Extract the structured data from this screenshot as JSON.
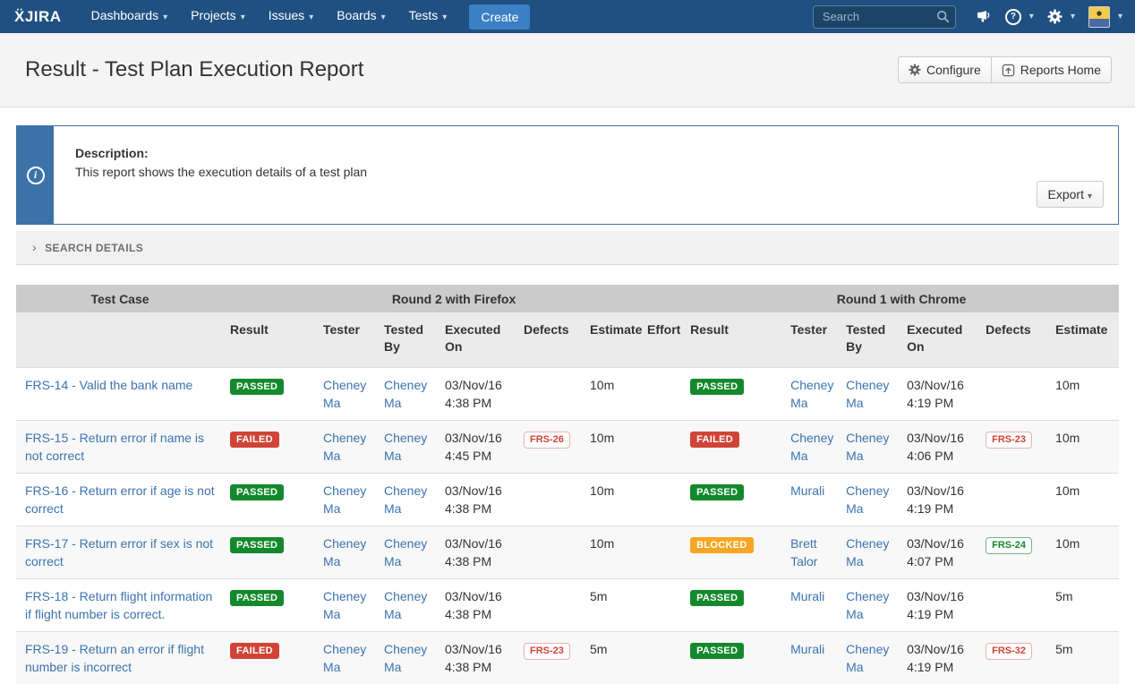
{
  "icons": {
    "caret": "▾",
    "chevron_right": "›",
    "question": "?",
    "info": "i"
  },
  "colors": {
    "navbar": "#205081",
    "link": "#3b73af",
    "passed": "#14892c",
    "failed": "#d04437",
    "blocked": "#f6a623"
  },
  "navbar": {
    "logo_mark": "Ẍ",
    "logo_text": "JIRA",
    "menu": [
      {
        "label": "Dashboards"
      },
      {
        "label": "Projects"
      },
      {
        "label": "Issues"
      },
      {
        "label": "Boards"
      },
      {
        "label": "Tests"
      }
    ],
    "create_label": "Create",
    "search_placeholder": "Search"
  },
  "header": {
    "title": "Result - Test Plan Execution Report",
    "configure_label": "Configure",
    "reports_home_label": "Reports Home"
  },
  "description_panel": {
    "heading": "Description:",
    "text": "This report shows the execution details of a test plan",
    "export_label": "Export"
  },
  "search_details_label": "SEARCH DETAILS",
  "table": {
    "group_headers": {
      "test_case": "Test Case",
      "round2": "Round 2 with Firefox",
      "round1": "Round 1 with Chrome"
    },
    "columns_round2": [
      "Result",
      "Tester",
      "Tested By",
      "Executed On",
      "Defects",
      "Estimate",
      "Effort"
    ],
    "columns_round1": [
      "Result",
      "Tester",
      "Tested By",
      "Executed On",
      "Defects",
      "Estimate"
    ],
    "rows": [
      {
        "key": "FRS-14",
        "summary": "Valid the bank name",
        "round2": {
          "result": "PASSED",
          "tester": "Cheney Ma",
          "tested_by": "Cheney Ma",
          "executed_on": "03/Nov/16 4:38 PM",
          "defect": null,
          "estimate": "10m",
          "effort": ""
        },
        "round1": {
          "result": "PASSED",
          "tester": "Cheney Ma",
          "tested_by": "Cheney Ma",
          "executed_on": "03/Nov/16 4:19 PM",
          "defect": null,
          "estimate": "10m"
        }
      },
      {
        "key": "FRS-15",
        "summary": "Return error if name is not correct",
        "round2": {
          "result": "FAILED",
          "tester": "Cheney Ma",
          "tested_by": "Cheney Ma",
          "executed_on": "03/Nov/16 4:45 PM",
          "defect": {
            "key": "FRS-26",
            "state": "open"
          },
          "estimate": "10m",
          "effort": ""
        },
        "round1": {
          "result": "FAILED",
          "tester": "Cheney Ma",
          "tested_by": "Cheney Ma",
          "executed_on": "03/Nov/16 4:06 PM",
          "defect": {
            "key": "FRS-23",
            "state": "open"
          },
          "estimate": "10m"
        }
      },
      {
        "key": "FRS-16",
        "summary": "Return error if age is not correct",
        "round2": {
          "result": "PASSED",
          "tester": "Cheney Ma",
          "tested_by": "Cheney Ma",
          "executed_on": "03/Nov/16 4:38 PM",
          "defect": null,
          "estimate": "10m",
          "effort": ""
        },
        "round1": {
          "result": "PASSED",
          "tester": "Murali",
          "tested_by": "Cheney Ma",
          "executed_on": "03/Nov/16 4:19 PM",
          "defect": null,
          "estimate": "10m"
        }
      },
      {
        "key": "FRS-17",
        "summary": "Return error if sex is not correct",
        "round2": {
          "result": "PASSED",
          "tester": "Cheney Ma",
          "tested_by": "Cheney Ma",
          "executed_on": "03/Nov/16 4:38 PM",
          "defect": null,
          "estimate": "10m",
          "effort": ""
        },
        "round1": {
          "result": "BLOCKED",
          "tester": "Brett Talor",
          "tested_by": "Cheney Ma",
          "executed_on": "03/Nov/16 4:07 PM",
          "defect": {
            "key": "FRS-24",
            "state": "resolved"
          },
          "estimate": "10m"
        }
      },
      {
        "key": "FRS-18",
        "summary": "Return flight information if flight number is correct.",
        "round2": {
          "result": "PASSED",
          "tester": "Cheney Ma",
          "tested_by": "Cheney Ma",
          "executed_on": "03/Nov/16 4:38 PM",
          "defect": null,
          "estimate": "5m",
          "effort": ""
        },
        "round1": {
          "result": "PASSED",
          "tester": "Murali",
          "tested_by": "Cheney Ma",
          "executed_on": "03/Nov/16 4:19 PM",
          "defect": null,
          "estimate": "5m"
        }
      },
      {
        "key": "FRS-19",
        "summary": "Return an error if flight number is incorrect",
        "round2": {
          "result": "FAILED",
          "tester": "Cheney Ma",
          "tested_by": "Cheney Ma",
          "executed_on": "03/Nov/16 4:38 PM",
          "defect": {
            "key": "FRS-23",
            "state": "open"
          },
          "estimate": "5m",
          "effort": ""
        },
        "round1": {
          "result": "PASSED",
          "tester": "Murali",
          "tested_by": "Cheney Ma",
          "executed_on": "03/Nov/16 4:19 PM",
          "defect": {
            "key": "FRS-32",
            "state": "open"
          },
          "estimate": "5m"
        }
      }
    ]
  }
}
